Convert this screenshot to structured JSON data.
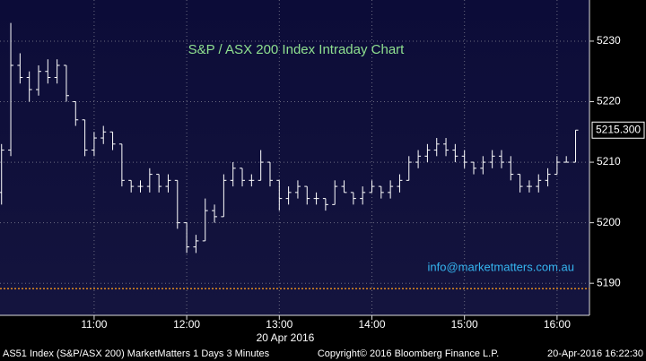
{
  "chart_data": {
    "type": "ohlc",
    "title": "S&P / ASX 200 Index Intraday Chart",
    "annotation": "info@marketmatters.com.au",
    "x_date_label": "20 Apr 2016",
    "footer_left": "AS51 Index (S&P/ASX 200) MarketMatters 1 Days 3 Minutes",
    "footer_center": "Copyright© 2016 Bloomberg Finance L.P.",
    "footer_right": "20-Apr-2016 16:22:30",
    "last_label": "5215.300",
    "color": "#ffffff",
    "ref_line": 5189.1,
    "ref_color": "#e08a1e",
    "grid": true,
    "xlim": [
      599,
      981
    ],
    "xticks": [
      {
        "value": 660,
        "label": "11:00"
      },
      {
        "value": 720,
        "label": "12:00"
      },
      {
        "value": 780,
        "label": "13:00"
      },
      {
        "value": 840,
        "label": "14:00"
      },
      {
        "value": 900,
        "label": "15:00"
      },
      {
        "value": 960,
        "label": "16:00"
      }
    ],
    "ylim": [
      5184.7,
      5236.8
    ],
    "yticks": [
      5190,
      5200,
      5210,
      5220,
      5230
    ],
    "x": [
      600,
      606,
      612,
      618,
      624,
      630,
      636,
      642,
      648,
      654,
      660,
      666,
      672,
      678,
      684,
      690,
      696,
      702,
      708,
      714,
      720,
      726,
      732,
      738,
      744,
      750,
      756,
      762,
      768,
      774,
      780,
      786,
      792,
      798,
      804,
      810,
      816,
      822,
      828,
      834,
      840,
      846,
      852,
      858,
      864,
      870,
      876,
      882,
      888,
      894,
      900,
      906,
      912,
      918,
      924,
      930,
      936,
      942,
      948,
      954,
      960,
      966,
      972
    ],
    "bars": [
      [
        5205,
        5213,
        5203,
        5212
      ],
      [
        5212,
        5233,
        5211,
        5226
      ],
      [
        5226,
        5228,
        5223,
        5224
      ],
      [
        5224,
        5225,
        5220,
        5222
      ],
      [
        5222,
        5226,
        5221,
        5225
      ],
      [
        5225,
        5227,
        5223,
        5224
      ],
      [
        5224,
        5227,
        5223,
        5226
      ],
      [
        5226,
        5226,
        5220,
        5221
      ],
      [
        5220,
        5220,
        5216,
        5217
      ],
      [
        5217,
        5217,
        5211,
        5212
      ],
      [
        5212,
        5215,
        5211,
        5214
      ],
      [
        5214,
        5216,
        5213,
        5215
      ],
      [
        5215,
        5215,
        5212,
        5213
      ],
      [
        5213,
        5213,
        5206,
        5207
      ],
      [
        5207,
        5207,
        5205,
        5206
      ],
      [
        5206,
        5207,
        5205,
        5206
      ],
      [
        5206,
        5209,
        5205,
        5208
      ],
      [
        5208,
        5208,
        5205,
        5206
      ],
      [
        5206,
        5208,
        5205,
        5207
      ],
      [
        5207,
        5207,
        5199,
        5200
      ],
      [
        5200,
        5200,
        5195,
        5196
      ],
      [
        5196,
        5198,
        5195,
        5197
      ],
      [
        5197,
        5204,
        5197,
        5202
      ],
      [
        5202,
        5203,
        5200,
        5201
      ],
      [
        5201,
        5208,
        5201,
        5207
      ],
      [
        5207,
        5210,
        5206,
        5209
      ],
      [
        5209,
        5209,
        5206,
        5207
      ],
      [
        5207,
        5208,
        5206,
        5207
      ],
      [
        5207,
        5212,
        5207,
        5210
      ],
      [
        5210,
        5210,
        5206,
        5207
      ],
      [
        5207,
        5207,
        5202,
        5204
      ],
      [
        5204,
        5206,
        5203,
        5205
      ],
      [
        5205,
        5207,
        5204,
        5206
      ],
      [
        5206,
        5206,
        5203,
        5204
      ],
      [
        5204,
        5205,
        5203,
        5204
      ],
      [
        5204,
        5204,
        5202,
        5203
      ],
      [
        5203,
        5207,
        5203,
        5206
      ],
      [
        5206,
        5207,
        5205,
        5205
      ],
      [
        5205,
        5205,
        5203,
        5204
      ],
      [
        5204,
        5206,
        5203,
        5205
      ],
      [
        5205,
        5207,
        5205,
        5206
      ],
      [
        5206,
        5206,
        5204,
        5205
      ],
      [
        5205,
        5207,
        5204,
        5206
      ],
      [
        5206,
        5208,
        5205,
        5207
      ],
      [
        5207,
        5211,
        5207,
        5210
      ],
      [
        5210,
        5212,
        5209,
        5211
      ],
      [
        5211,
        5213,
        5210,
        5212
      ],
      [
        5212,
        5214,
        5211,
        5213
      ],
      [
        5213,
        5214,
        5211,
        5212
      ],
      [
        5212,
        5213,
        5210,
        5211
      ],
      [
        5211,
        5212,
        5209,
        5210
      ],
      [
        5210,
        5210,
        5208,
        5209
      ],
      [
        5209,
        5211,
        5208,
        5210
      ],
      [
        5210,
        5212,
        5209,
        5211
      ],
      [
        5211,
        5212,
        5209,
        5210
      ],
      [
        5210,
        5211,
        5207,
        5208
      ],
      [
        5208,
        5208,
        5205,
        5206
      ],
      [
        5206,
        5207,
        5205,
        5206
      ],
      [
        5206,
        5208,
        5205,
        5207
      ],
      [
        5207,
        5209,
        5206,
        5208
      ],
      [
        5208,
        5211,
        5208,
        5210
      ],
      [
        5210,
        5211,
        5210,
        5210
      ],
      [
        5210,
        5215.3,
        5210,
        5215.3
      ]
    ]
  }
}
